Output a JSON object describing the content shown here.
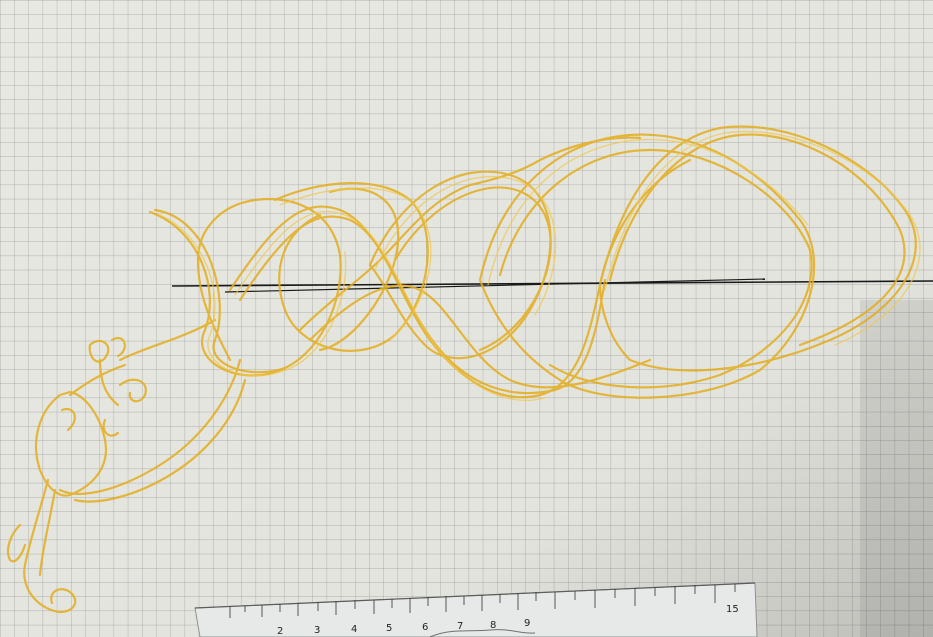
{
  "scene": {
    "description_shown": false,
    "paper_color": "#e8e8e2",
    "grid_color": "#9aa0a0",
    "shadow_color": "#b9bbb6",
    "ink_color": "#e3ad1e",
    "ink_light": "#f0c84a",
    "line_color": "#1a1a1a",
    "ruler_color": "#e6e9e8",
    "ruler_labels": [
      "2",
      "3",
      "4",
      "5",
      "6",
      "7",
      "8",
      "9",
      "15"
    ]
  }
}
